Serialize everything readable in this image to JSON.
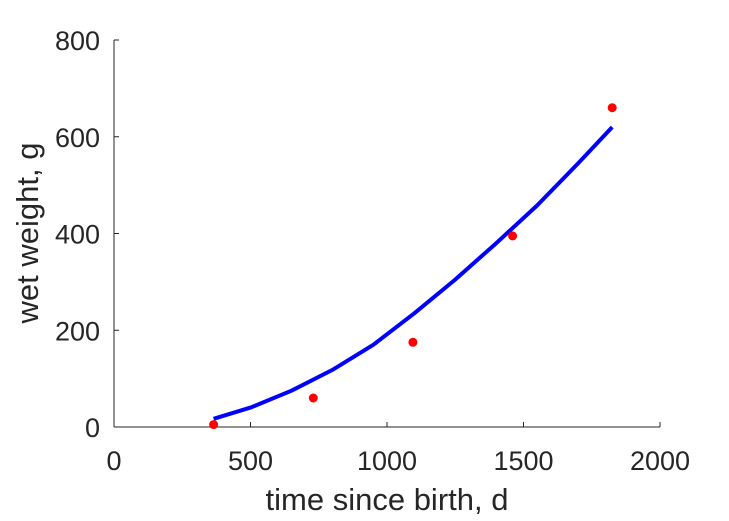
{
  "chart_data": {
    "type": "scatter",
    "title": "",
    "xlabel": "time since birth, d",
    "ylabel": "wet weight, g",
    "xlim": [
      0,
      2000
    ],
    "ylim": [
      0,
      800
    ],
    "xticks": [
      0,
      500,
      1000,
      1500,
      2000
    ],
    "yticks": [
      0,
      200,
      400,
      600,
      800
    ],
    "xtick_labels": [
      "0",
      "500",
      "1000",
      "1500",
      "2000"
    ],
    "ytick_labels": [
      "0",
      "200",
      "400",
      "600",
      "800"
    ],
    "grid": false,
    "legend": "none",
    "series": [
      {
        "kind": "scatter",
        "color": "#ff0000",
        "x": [
          365,
          730,
          1095,
          1460,
          1825
        ],
        "y": [
          5,
          60,
          175,
          395,
          660
        ]
      },
      {
        "kind": "line",
        "color": "#0000ff",
        "x": [
          365,
          500,
          650,
          800,
          950,
          1100,
          1250,
          1400,
          1550,
          1700,
          1825
        ],
        "y": [
          17,
          40,
          75,
          118,
          170,
          235,
          305,
          380,
          458,
          545,
          620
        ]
      }
    ]
  }
}
